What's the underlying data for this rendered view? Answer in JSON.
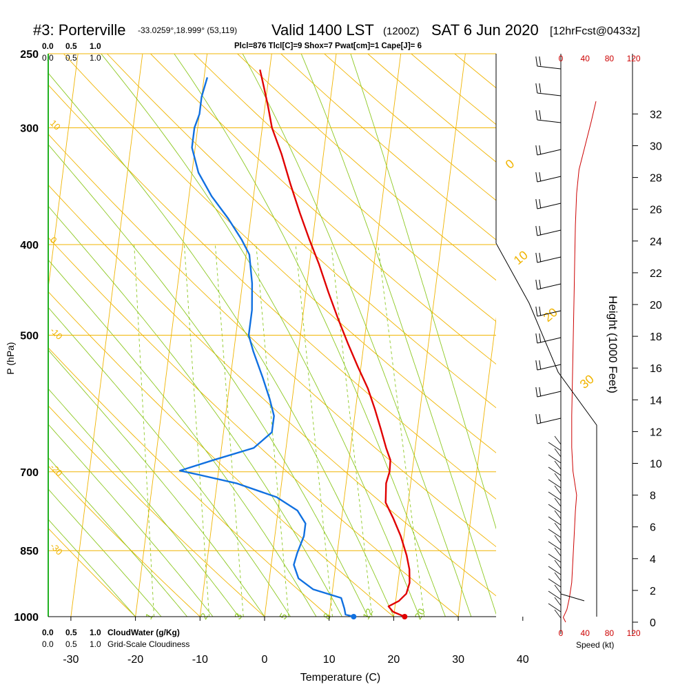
{
  "header": {
    "station": "#3: Porterville",
    "coords": "-33.0259°,18.999° (53,119)",
    "valid": "Valid 1400 LST",
    "zulu": "(1200Z)",
    "date": "SAT 6 Jun 2020",
    "forecast": "[12hrFcst@0433z]",
    "indices": "Plcl=876 Tlcl[C]=9 Shox=7 Pwat[cm]=1 Cape[J]= 6"
  },
  "labels": {
    "x_axis": "Temperature (C)",
    "y_axis": "P (hPa)",
    "height_axis": "Height (1000 Feet)",
    "speed_axis": "Speed (kt)",
    "cloudwater": "CloudWater (g/Kg)",
    "cloudiness": "Grid-Scale Cloudiness",
    "cw_ticks": [
      "0.0",
      "0.5",
      "1.0"
    ],
    "speed_ticks": [
      "0",
      "40",
      "80",
      "120"
    ]
  },
  "colors": {
    "isobar": "#f0b400",
    "isotherm": "#f0b400",
    "dry_adiabat": "#f0b400",
    "moist_adiabat": "#8cc820",
    "mixing_ratio": "#8cc820",
    "temperature": "#e00000",
    "dewpoint": "#1070e0",
    "speed": "#cc0000",
    "cloudwater": "#20a020",
    "indices": "#a00050"
  },
  "chart_data": {
    "type": "line",
    "title": "#3: Porterville",
    "xlabel": "Temperature (C)",
    "ylabel": "P (hPa)",
    "xlim": [
      -35,
      46
    ],
    "ylim": [
      1000,
      250
    ],
    "y_log": true,
    "x_ticks": [
      -30,
      -20,
      -10,
      0,
      10,
      20,
      30,
      40
    ],
    "pressure_ticks": [
      250,
      300,
      400,
      500,
      700,
      850,
      1000
    ],
    "height_ticks": [
      0,
      2,
      4,
      6,
      8,
      10,
      12,
      14,
      16,
      18,
      20,
      22,
      24,
      26,
      28,
      30,
      32
    ],
    "isotherm_labels": [
      -30,
      -20,
      -10,
      0,
      10,
      20,
      30
    ],
    "mixing_ratio_labels": [
      "1",
      "2",
      "3",
      "5",
      "8",
      "12",
      "20"
    ],
    "series": [
      {
        "name": "Temperature",
        "points": [
          [
            21.7,
            1000
          ],
          [
            19.8,
            988
          ],
          [
            19.0,
            975
          ],
          [
            20.5,
            962
          ],
          [
            21.5,
            945
          ],
          [
            21.8,
            920
          ],
          [
            21.5,
            890
          ],
          [
            20.8,
            860
          ],
          [
            19.5,
            820
          ],
          [
            18.0,
            785
          ],
          [
            16.5,
            755
          ],
          [
            16.2,
            720
          ],
          [
            16.5,
            700
          ],
          [
            16.4,
            680
          ],
          [
            15.5,
            660
          ],
          [
            14.3,
            630
          ],
          [
            13.0,
            600
          ],
          [
            11.5,
            570
          ],
          [
            9.5,
            540
          ],
          [
            7.5,
            510
          ],
          [
            5.5,
            480
          ],
          [
            3.5,
            450
          ],
          [
            1.5,
            420
          ],
          [
            -0.5,
            395
          ],
          [
            -2.5,
            370
          ],
          [
            -4.5,
            345
          ],
          [
            -6.5,
            320
          ],
          [
            -8.5,
            300
          ],
          [
            -9.5,
            285
          ],
          [
            -10.5,
            272
          ],
          [
            -11.5,
            260
          ]
        ]
      },
      {
        "name": "Dewpoint",
        "points": [
          [
            13.8,
            1000
          ],
          [
            12.5,
            995
          ],
          [
            12.2,
            980
          ],
          [
            11.5,
            955
          ],
          [
            7.0,
            935
          ],
          [
            4.5,
            910
          ],
          [
            3.5,
            880
          ],
          [
            3.8,
            855
          ],
          [
            4.5,
            820
          ],
          [
            4.5,
            795
          ],
          [
            3.0,
            770
          ],
          [
            -0.5,
            745
          ],
          [
            -7.0,
            720
          ],
          [
            -13.0,
            705
          ],
          [
            -16.0,
            698
          ],
          [
            -11.0,
            680
          ],
          [
            -5.0,
            660
          ],
          [
            -2.5,
            635
          ],
          [
            -2.5,
            610
          ],
          [
            -3.5,
            585
          ],
          [
            -5.0,
            555
          ],
          [
            -7.0,
            520
          ],
          [
            -8.0,
            500
          ],
          [
            -8.0,
            470
          ],
          [
            -8.5,
            440
          ],
          [
            -9.5,
            410
          ],
          [
            -11.0,
            395
          ],
          [
            -13.5,
            375
          ],
          [
            -16.5,
            355
          ],
          [
            -19.0,
            335
          ],
          [
            -20.5,
            315
          ],
          [
            -20.5,
            300
          ],
          [
            -20.0,
            290
          ],
          [
            -20.0,
            278
          ],
          [
            -19.5,
            265
          ]
        ]
      }
    ],
    "wind_speed_profile": {
      "xlim": [
        0,
        120
      ],
      "points": [
        [
          8,
          0
        ],
        [
          4,
          0.3
        ],
        [
          10,
          0.8
        ],
        [
          14,
          1.5
        ],
        [
          18,
          2.5
        ],
        [
          20,
          4
        ],
        [
          22,
          5.5
        ],
        [
          24,
          7
        ],
        [
          26,
          8
        ],
        [
          20,
          9.5
        ],
        [
          18,
          11
        ],
        [
          18,
          13
        ],
        [
          19,
          15
        ],
        [
          20,
          17
        ],
        [
          21,
          19
        ],
        [
          22,
          21
        ],
        [
          23,
          23
        ],
        [
          24,
          25
        ],
        [
          26,
          27
        ],
        [
          30,
          28.5
        ],
        [
          40,
          30
        ],
        [
          50,
          31.5
        ],
        [
          58,
          32.8
        ]
      ]
    }
  }
}
